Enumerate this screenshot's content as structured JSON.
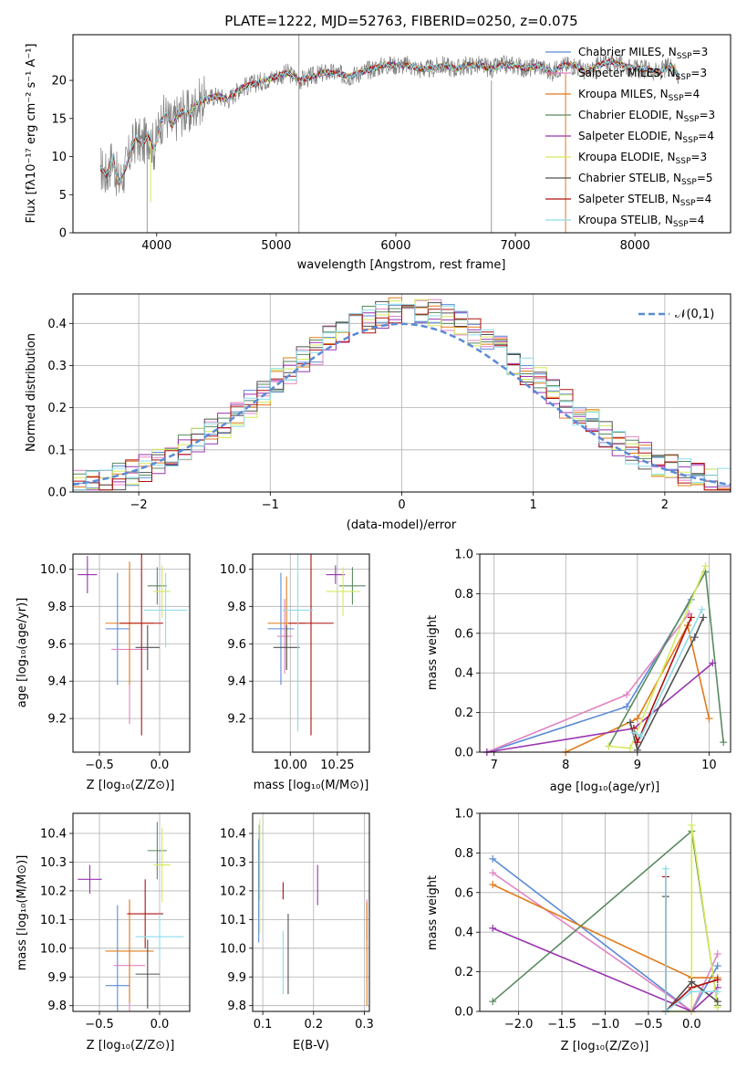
{
  "colors": {
    "Chabrier MILES": "#5b8bd6",
    "Salpeter MILES": "#e184c2",
    "Kroupa MILES": "#e07b1a",
    "Chabrier ELODIE": "#5a8a60",
    "Salpeter ELODIE": "#9a34b0",
    "Kroupa ELODIE": "#d4ea5c",
    "Chabrier STELIB": "#505050",
    "Salpeter STELIB": "#b01010",
    "Kroupa STELIB": "#8edcec",
    "normal": "#5b8bd6"
  },
  "chart_data": [
    {
      "id": "spectrum",
      "type": "line",
      "title": "PLATE=1222, MJD=52763, FIBERID=0250, z=0.075",
      "xlabel": "wavelength [Angstrom, rest frame]",
      "ylabel": "Flux [fλ10⁻¹⁷ erg cm⁻² s⁻¹ A⁻¹]",
      "xlim": [
        3300,
        8800
      ],
      "ylim": [
        0,
        26
      ],
      "xticks": [
        4000,
        5000,
        6000,
        7000,
        8000
      ],
      "yticks": [
        0,
        5,
        10,
        15,
        20
      ],
      "grid": false,
      "legend_position": "top-right",
      "legend": [
        {
          "series": "Chabrier MILES",
          "text": "Chabrier MILES, N",
          "sub": "SSP",
          "tail": "=3"
        },
        {
          "series": "Salpeter MILES",
          "text": "Salpeter MILES, N",
          "sub": "SSP",
          "tail": "=3"
        },
        {
          "series": "Kroupa MILES",
          "text": "Kroupa MILES, N",
          "sub": "SSP",
          "tail": "=4"
        },
        {
          "series": "Chabrier ELODIE",
          "text": "Chabrier ELODIE, N",
          "sub": "SSP",
          "tail": "=3"
        },
        {
          "series": "Salpeter ELODIE",
          "text": "Salpeter ELODIE, N",
          "sub": "SSP",
          "tail": "=4"
        },
        {
          "series": "Kroupa ELODIE",
          "text": "Kroupa ELODIE, N",
          "sub": "SSP",
          "tail": "=3"
        },
        {
          "series": "Chabrier STELIB",
          "text": "Chabrier STELIB, N",
          "sub": "SSP",
          "tail": "=5"
        },
        {
          "series": "Salpeter STELIB",
          "text": "Salpeter STELIB, N",
          "sub": "SSP",
          "tail": "=4"
        },
        {
          "series": "Kroupa STELIB",
          "text": "Kroupa STELIB, N",
          "sub": "SSP",
          "tail": "=4"
        }
      ],
      "data_series": {
        "name": "data",
        "color": "#808080",
        "x": [
          3530,
          3580,
          3630,
          3680,
          3730,
          3780,
          3830,
          3880,
          3930,
          3980,
          4030,
          4080,
          4130,
          4180,
          4230,
          4280,
          4330,
          4400,
          4500,
          4600,
          4700,
          4800,
          4900,
          5000,
          5100,
          5200,
          5300,
          5400,
          5500,
          5600,
          5700,
          5800,
          5900,
          6000,
          6100,
          6200,
          6300,
          6400,
          6500,
          6600,
          6700,
          6800,
          6900,
          7000,
          7100,
          7200,
          7300,
          7400,
          7500,
          7600,
          7700,
          7800,
          7900,
          8000,
          8100,
          8200,
          8300,
          8370
        ],
        "y": [
          8.5,
          7.5,
          10.0,
          6.5,
          8.0,
          10.5,
          12.5,
          11.5,
          13.0,
          11.0,
          14.5,
          15.5,
          14.0,
          15.5,
          16.0,
          15.5,
          17.0,
          17.5,
          18.0,
          17.5,
          19.0,
          19.5,
          20.0,
          20.5,
          21.0,
          20.0,
          20.5,
          21.0,
          21.0,
          20.5,
          21.0,
          21.5,
          22.0,
          22.0,
          22.0,
          21.5,
          21.5,
          22.0,
          21.5,
          22.0,
          22.0,
          21.5,
          22.0,
          22.0,
          21.5,
          22.0,
          21.0,
          22.0,
          22.0,
          21.0,
          22.0,
          22.5,
          22.0,
          21.5,
          21.5,
          21.0,
          22.0,
          20.5
        ]
      }
    },
    {
      "id": "residual",
      "type": "step",
      "title": "",
      "xlabel": "(data-model)/error",
      "ylabel": "Normed distribution",
      "xlim": [
        -2.5,
        2.5
      ],
      "ylim": [
        0,
        0.47
      ],
      "xticks": [
        -2,
        -1,
        0,
        1,
        2
      ],
      "yticks": [
        0.0,
        0.1,
        0.2,
        0.3,
        0.4
      ],
      "grid": true,
      "legend_position": "top-right",
      "legend_label": "𝒩(0,1)",
      "normal": {
        "mean": 0,
        "sigma": 1
      }
    },
    {
      "id": "age_vs_Z",
      "type": "errorbar",
      "xlabel": "Z [log₁₀(Z/Z⊙)]",
      "ylabel": "age  [log₁₀(age/yr)]",
      "xlim": [
        -0.72,
        0.25
      ],
      "ylim": [
        9.02,
        10.08
      ],
      "xticks": [
        -0.5,
        0.0
      ],
      "yticks": [
        9.2,
        9.4,
        9.6,
        9.8,
        10.0
      ],
      "grid": true,
      "points": [
        {
          "series": "Chabrier MILES",
          "x": -0.35,
          "xerr": 0.1,
          "y": 9.68,
          "yerr": 0.3
        },
        {
          "series": "Salpeter MILES",
          "x": -0.25,
          "xerr": 0.15,
          "y": 9.57,
          "yerr": 0.4
        },
        {
          "series": "Kroupa MILES",
          "x": -0.25,
          "xerr": 0.2,
          "y": 9.71,
          "yerr": 0.33
        },
        {
          "series": "Chabrier ELODIE",
          "x": -0.02,
          "xerr": 0.08,
          "y": 9.91,
          "yerr": 0.1
        },
        {
          "series": "Salpeter ELODIE",
          "x": -0.6,
          "xerr": 0.08,
          "y": 9.97,
          "yerr": 0.1
        },
        {
          "series": "Kroupa ELODIE",
          "x": 0.02,
          "xerr": 0.07,
          "y": 9.88,
          "yerr": 0.14
        },
        {
          "series": "Chabrier STELIB",
          "x": -0.1,
          "xerr": 0.1,
          "y": 9.58,
          "yerr": 0.12
        },
        {
          "series": "Salpeter STELIB",
          "x": -0.15,
          "xerr": 0.18,
          "y": 9.71,
          "yerr": 0.6
        },
        {
          "series": "Kroupa STELIB",
          "x": 0.05,
          "xerr": 0.18,
          "y": 9.78,
          "yerr": 0.2
        }
      ]
    },
    {
      "id": "age_vs_mass",
      "type": "errorbar",
      "xlabel": "mass [log₁₀(M/M⊙)]",
      "ylabel": "",
      "xlim": [
        9.8,
        10.42
      ],
      "ylim": [
        9.02,
        10.08
      ],
      "xticks": [
        10.0,
        10.25
      ],
      "yticks": [
        9.2,
        9.4,
        9.6,
        9.8,
        10.0
      ],
      "grid": true,
      "points": [
        {
          "series": "Chabrier MILES",
          "x": 9.95,
          "xerr": 0.07,
          "y": 9.68,
          "yerr": 0.3
        },
        {
          "series": "Salpeter MILES",
          "x": 9.97,
          "xerr": 0.04,
          "y": 9.64,
          "yerr": 0.2
        },
        {
          "series": "Kroupa MILES",
          "x": 9.98,
          "xerr": 0.1,
          "y": 9.71,
          "yerr": 0.25
        },
        {
          "series": "Chabrier ELODIE",
          "x": 10.33,
          "xerr": 0.07,
          "y": 9.91,
          "yerr": 0.1
        },
        {
          "series": "Salpeter ELODIE",
          "x": 10.24,
          "xerr": 0.05,
          "y": 9.97,
          "yerr": 0.05
        },
        {
          "series": "Kroupa ELODIE",
          "x": 10.28,
          "xerr": 0.09,
          "y": 9.88,
          "yerr": 0.13
        },
        {
          "series": "Chabrier STELIB",
          "x": 9.98,
          "xerr": 0.07,
          "y": 9.58,
          "yerr": 0.12
        },
        {
          "series": "Salpeter STELIB",
          "x": 10.11,
          "xerr": 0.12,
          "y": 9.71,
          "yerr": 0.6
        },
        {
          "series": "Kroupa STELIB",
          "x": 10.04,
          "xerr": 0.08,
          "y": 9.78,
          "yerr": 0.65
        }
      ]
    },
    {
      "id": "mass_weight_vs_age",
      "type": "line",
      "xlabel": "age  [log₁₀(age/yr)]",
      "ylabel": "mass weight",
      "xlim": [
        6.8,
        10.3
      ],
      "ylim": [
        0,
        1.0
      ],
      "xticks": [
        7,
        8,
        9,
        10
      ],
      "yticks": [
        0.0,
        0.2,
        0.4,
        0.6,
        0.8,
        1.0
      ],
      "grid": true,
      "series": [
        {
          "name": "Chabrier MILES",
          "x": [
            6.9,
            8.85,
            9.75
          ],
          "y": [
            0.0,
            0.23,
            0.77
          ]
        },
        {
          "name": "Salpeter MILES",
          "x": [
            6.9,
            8.85,
            9.72
          ],
          "y": [
            0.0,
            0.29,
            0.7
          ]
        },
        {
          "name": "Kroupa MILES",
          "x": [
            8.0,
            9.0,
            9.7,
            10.0
          ],
          "y": [
            0.0,
            0.17,
            0.64,
            0.17
          ]
        },
        {
          "name": "Chabrier ELODIE",
          "x": [
            8.6,
            9.95,
            10.2
          ],
          "y": [
            0.03,
            0.91,
            0.05
          ]
        },
        {
          "name": "Salpeter ELODIE",
          "x": [
            6.9,
            8.95,
            10.05
          ],
          "y": [
            0.0,
            0.12,
            0.45
          ]
        },
        {
          "name": "Kroupa ELODIE",
          "x": [
            8.6,
            8.9,
            9.95
          ],
          "y": [
            0.03,
            0.02,
            0.94
          ]
        },
        {
          "name": "Chabrier STELIB",
          "x": [
            8.9,
            9.0,
            9.8,
            9.92
          ],
          "y": [
            0.15,
            0.01,
            0.58,
            0.68
          ]
        },
        {
          "name": "Salpeter STELIB",
          "x": [
            8.95,
            9.0,
            9.75
          ],
          "y": [
            0.12,
            0.05,
            0.68
          ]
        },
        {
          "name": "Kroupa STELIB",
          "x": [
            8.95,
            9.05,
            9.9
          ],
          "y": [
            0.1,
            0.08,
            0.72
          ]
        }
      ]
    },
    {
      "id": "mass_vs_Z",
      "type": "errorbar",
      "xlabel": "Z [log₁₀(Z/Z⊙)]",
      "ylabel": "mass [log₁₀(M/M⊙)]",
      "xlim": [
        -0.72,
        0.25
      ],
      "ylim": [
        9.78,
        10.47
      ],
      "xticks": [
        -0.5,
        0.0
      ],
      "yticks": [
        9.8,
        9.9,
        10.0,
        10.1,
        10.2,
        10.3,
        10.4
      ],
      "grid": true,
      "points": [
        {
          "series": "Chabrier MILES",
          "x": -0.35,
          "xerr": 0.1,
          "y": 9.87,
          "yerr": 0.28
        },
        {
          "series": "Salpeter MILES",
          "x": -0.25,
          "xerr": 0.13,
          "y": 9.94,
          "yerr": 0.23
        },
        {
          "series": "Kroupa MILES",
          "x": -0.25,
          "xerr": 0.2,
          "y": 9.99,
          "yerr": 0.18
        },
        {
          "series": "Chabrier ELODIE",
          "x": -0.02,
          "xerr": 0.08,
          "y": 10.34,
          "yerr": 0.1
        },
        {
          "series": "Salpeter ELODIE",
          "x": -0.58,
          "xerr": 0.1,
          "y": 10.24,
          "yerr": 0.05
        },
        {
          "series": "Kroupa ELODIE",
          "x": 0.02,
          "xerr": 0.07,
          "y": 10.29,
          "yerr": 0.13
        },
        {
          "series": "Chabrier STELIB",
          "x": -0.1,
          "xerr": 0.1,
          "y": 9.91,
          "yerr": 0.12
        },
        {
          "series": "Salpeter STELIB",
          "x": -0.12,
          "xerr": 0.15,
          "y": 10.12,
          "yerr": 0.12
        },
        {
          "series": "Kroupa STELIB",
          "x": 0.0,
          "xerr": 0.2,
          "y": 10.04,
          "yerr": 0.08
        }
      ]
    },
    {
      "id": "mass_vs_EBV",
      "type": "errorbar",
      "xlabel": "E(B-V)",
      "ylabel": "",
      "xlim": [
        0.08,
        0.31
      ],
      "ylim": [
        9.78,
        10.47
      ],
      "xticks": [
        0.1,
        0.2,
        0.3
      ],
      "yticks": [
        9.8,
        9.9,
        10.0,
        10.1,
        10.2,
        10.3,
        10.4
      ],
      "grid": true,
      "points": [
        {
          "series": "Chabrier MILES",
          "x": 0.092,
          "xerr": 0,
          "y": 10.2,
          "yerr": 0.18
        },
        {
          "series": "Salpeter MILES",
          "x": 0.305,
          "xerr": 0,
          "y": 10.1,
          "yerr": 0.07
        },
        {
          "series": "Kroupa MILES",
          "x": 0.305,
          "xerr": 0,
          "y": 9.98,
          "yerr": 0.18
        },
        {
          "series": "Chabrier ELODIE",
          "x": 0.093,
          "xerr": 0,
          "y": 10.3,
          "yerr": 0.13
        },
        {
          "series": "Salpeter ELODIE",
          "x": 0.208,
          "xerr": 0,
          "y": 10.22,
          "yerr": 0.07
        },
        {
          "series": "Kroupa ELODIE",
          "x": 0.094,
          "xerr": 0,
          "y": 10.25,
          "yerr": 0.2
        },
        {
          "series": "Chabrier STELIB",
          "x": 0.15,
          "xerr": 0,
          "y": 9.98,
          "yerr": 0.14
        },
        {
          "series": "Salpeter STELIB",
          "x": 0.14,
          "xerr": 0,
          "y": 10.2,
          "yerr": 0.03
        },
        {
          "series": "Kroupa STELIB",
          "x": 0.14,
          "xerr": 0,
          "y": 9.95,
          "yerr": 0.11
        }
      ]
    },
    {
      "id": "mass_weight_vs_Z",
      "type": "line",
      "xlabel": "Z [log₁₀(Z/Z⊙)]",
      "ylabel": "mass weight",
      "xlim": [
        -2.45,
        0.45
      ],
      "ylim": [
        0,
        1.0
      ],
      "xticks": [
        -2.0,
        -1.5,
        -1.0,
        -0.5,
        0.0
      ],
      "yticks": [
        0.0,
        0.2,
        0.4,
        0.6,
        0.8,
        1.0
      ],
      "grid": true,
      "series": [
        {
          "name": "Chabrier MILES",
          "x": [
            -2.3,
            0.0,
            0.3
          ],
          "y": [
            0.77,
            0.0,
            0.23
          ]
        },
        {
          "name": "Salpeter MILES",
          "x": [
            -2.3,
            0.0,
            0.3
          ],
          "y": [
            0.7,
            0.0,
            0.29
          ]
        },
        {
          "name": "Kroupa MILES",
          "x": [
            -2.3,
            0.0,
            0.3
          ],
          "y": [
            0.64,
            0.17,
            0.17
          ]
        },
        {
          "name": "Chabrier ELODIE",
          "x": [
            -2.3,
            0.0,
            0.3
          ],
          "y": [
            0.05,
            0.91,
            0.03
          ]
        },
        {
          "name": "Salpeter ELODIE",
          "x": [
            -2.3,
            0.0,
            0.3
          ],
          "y": [
            0.42,
            0.0,
            0.12
          ]
        },
        {
          "name": "Kroupa ELODIE",
          "x": [
            -0.3,
            0.0,
            0.0,
            0.3
          ],
          "y": [
            0.0,
            0.0,
            0.94,
            0.02
          ]
        },
        {
          "name": "Chabrier STELIB",
          "x": [
            -0.3,
            -0.3,
            0.0,
            0.3
          ],
          "y": [
            0.58,
            0.0,
            0.15,
            0.05
          ]
        },
        {
          "name": "Salpeter STELIB",
          "x": [
            -0.3,
            -0.3,
            0.0,
            0.3
          ],
          "y": [
            0.68,
            0.0,
            0.12,
            0.16
          ]
        },
        {
          "name": "Kroupa STELIB",
          "x": [
            -0.3,
            -0.3,
            0.0,
            0.3
          ],
          "y": [
            0.72,
            0.0,
            0.1,
            0.1
          ]
        }
      ]
    }
  ]
}
